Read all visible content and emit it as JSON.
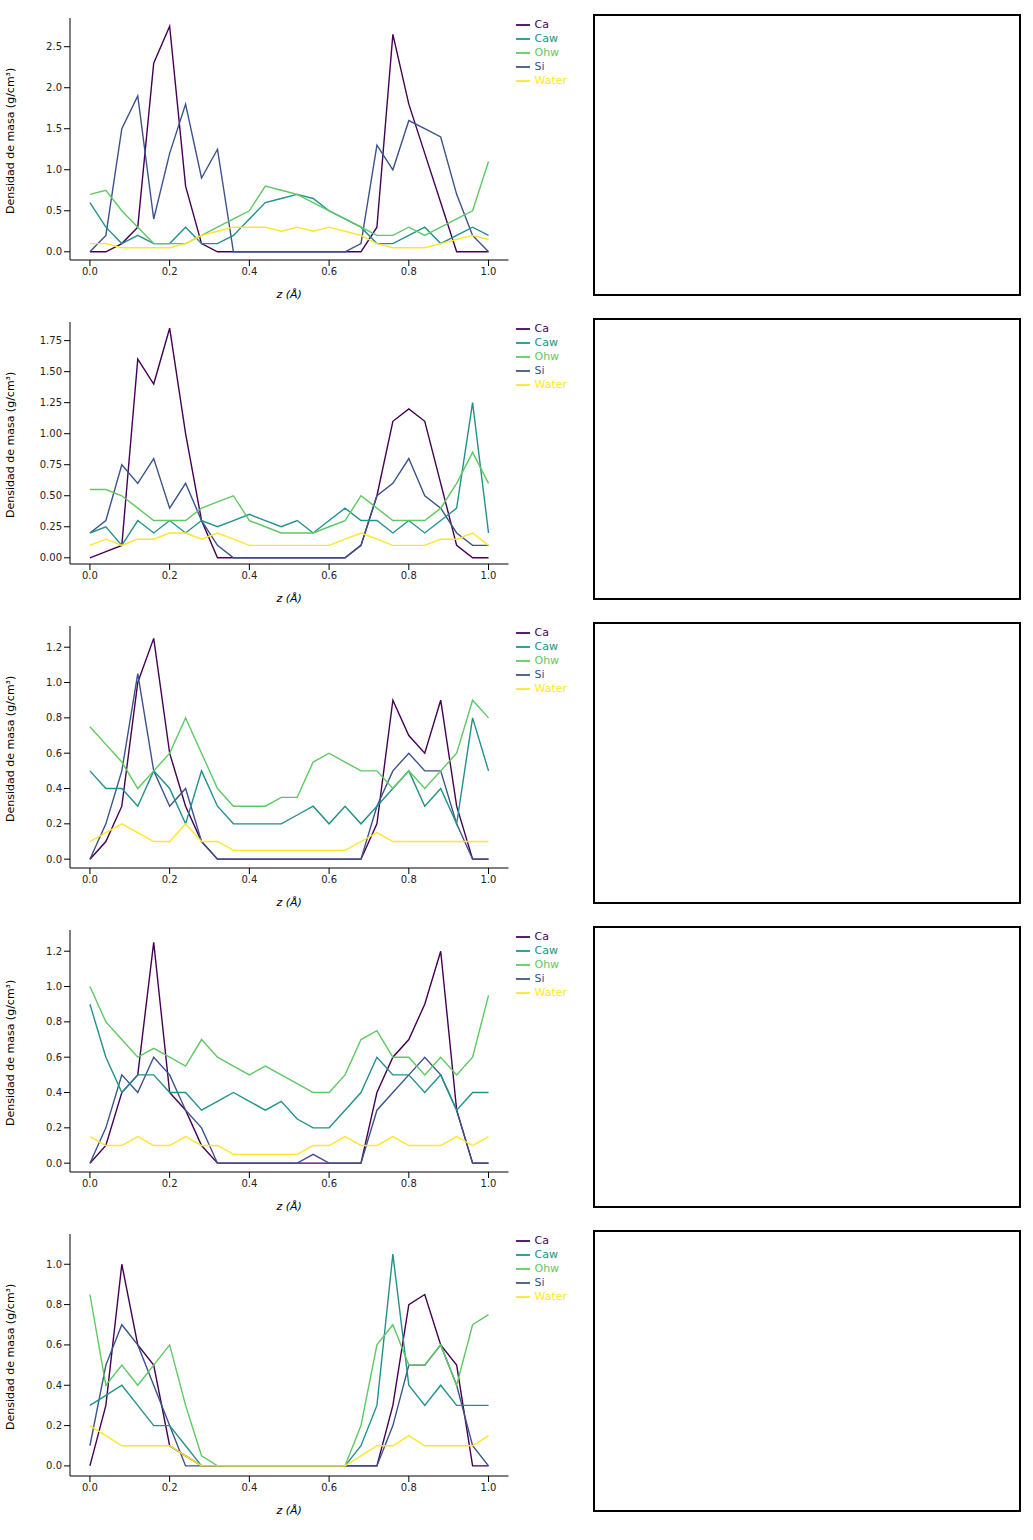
{
  "chart_data": [
    {
      "type": "line",
      "x_label": "z (Å)",
      "y_label": "Densidad de masa (g/cm³)",
      "legend": "right",
      "x": [
        0,
        0.04,
        0.08,
        0.12,
        0.16,
        0.2,
        0.24,
        0.28,
        0.32,
        0.36,
        0.4,
        0.44,
        0.48,
        0.52,
        0.56,
        0.6,
        0.64,
        0.68,
        0.72,
        0.76,
        0.8,
        0.84,
        0.88,
        0.92,
        0.96,
        1.0
      ],
      "xlim": [
        -0.05,
        1.05
      ],
      "xticks": [
        {
          "value": 0,
          "label": "0.0"
        },
        0.2,
        0.4,
        0.6,
        0.8,
        {
          "value": 1,
          "label": "1.0"
        }
      ],
      "ylim": [
        -0.1,
        2.85
      ],
      "yticks": [
        {
          "value": 0,
          "label": "0.0"
        },
        0.5,
        {
          "value": 1,
          "label": "1.0"
        },
        1.5,
        {
          "value": 2,
          "label": "2.0"
        },
        2.5
      ],
      "series": [
        {
          "name": "Ca",
          "color": "#440154",
          "values": [
            0,
            0,
            0.1,
            0.3,
            2.3,
            2.75,
            0.8,
            0.1,
            0,
            0,
            0,
            0,
            0,
            0,
            0,
            0,
            0,
            0,
            0.3,
            2.65,
            1.8,
            1.2,
            0.6,
            0,
            0,
            0
          ]
        },
        {
          "name": "Si",
          "color": "#3b528b",
          "values": [
            0,
            0.2,
            1.5,
            1.9,
            0.4,
            1.2,
            1.8,
            0.9,
            1.25,
            0,
            0,
            0,
            0,
            0,
            0,
            0,
            0,
            0.1,
            1.3,
            1.0,
            1.6,
            1.5,
            1.4,
            0.7,
            0.2,
            0
          ]
        },
        {
          "name": "Caw",
          "color": "#21918c",
          "values": [
            0.6,
            0.3,
            0.1,
            0.2,
            0.1,
            0.1,
            0.3,
            0.1,
            0.1,
            0.2,
            0.4,
            0.6,
            0.65,
            0.7,
            0.65,
            0.5,
            0.4,
            0.3,
            0.1,
            0.1,
            0.2,
            0.3,
            0.1,
            0.2,
            0.3,
            0.2
          ]
        },
        {
          "name": "Ohw",
          "color": "#5ec962",
          "values": [
            0.7,
            0.75,
            0.5,
            0.3,
            0.1,
            0.1,
            0.1,
            0.2,
            0.3,
            0.4,
            0.5,
            0.8,
            0.75,
            0.7,
            0.6,
            0.5,
            0.4,
            0.3,
            0.2,
            0.2,
            0.3,
            0.2,
            0.3,
            0.4,
            0.5,
            1.1
          ]
        },
        {
          "name": "Water",
          "color": "#fde725",
          "values": [
            0.1,
            0.1,
            0.05,
            0.05,
            0.05,
            0.05,
            0.1,
            0.2,
            0.25,
            0.3,
            0.3,
            0.3,
            0.25,
            0.3,
            0.25,
            0.3,
            0.25,
            0.2,
            0.1,
            0.05,
            0.05,
            0.05,
            0.1,
            0.15,
            0.2,
            0.15
          ]
        }
      ]
    },
    {
      "type": "line",
      "x_label": "z (Å)",
      "y_label": "Densidad de masa (g/cm³)",
      "legend": "right",
      "x": [
        0,
        0.04,
        0.08,
        0.12,
        0.16,
        0.2,
        0.24,
        0.28,
        0.32,
        0.36,
        0.4,
        0.44,
        0.48,
        0.52,
        0.56,
        0.6,
        0.64,
        0.68,
        0.72,
        0.76,
        0.8,
        0.84,
        0.88,
        0.92,
        0.96,
        1.0
      ],
      "xlim": [
        -0.05,
        1.05
      ],
      "xticks": [
        {
          "value": 0,
          "label": "0.0"
        },
        0.2,
        0.4,
        0.6,
        0.8,
        {
          "value": 1,
          "label": "1.0"
        }
      ],
      "ylim": [
        -0.05,
        1.9
      ],
      "yticks": [
        {
          "value": 0,
          "label": "0.00"
        },
        0.25,
        {
          "value": 0.5,
          "label": "0.50"
        },
        0.75,
        {
          "value": 1,
          "label": "1.00"
        },
        1.25,
        {
          "value": 1.5,
          "label": "1.50"
        },
        1.75
      ],
      "series": [
        {
          "name": "Ca",
          "color": "#440154",
          "values": [
            0,
            0.05,
            0.1,
            1.6,
            1.4,
            1.85,
            1.0,
            0.3,
            0,
            0,
            0,
            0,
            0,
            0,
            0,
            0,
            0,
            0.1,
            0.5,
            1.1,
            1.2,
            1.1,
            0.6,
            0.1,
            0,
            0
          ]
        },
        {
          "name": "Si",
          "color": "#3b528b",
          "values": [
            0.2,
            0.3,
            0.75,
            0.6,
            0.8,
            0.4,
            0.6,
            0.3,
            0.1,
            0,
            0,
            0,
            0,
            0,
            0,
            0,
            0,
            0.1,
            0.5,
            0.6,
            0.8,
            0.5,
            0.4,
            0.2,
            0.1,
            0.1
          ]
        },
        {
          "name": "Caw",
          "color": "#21918c",
          "values": [
            0.2,
            0.25,
            0.1,
            0.3,
            0.2,
            0.3,
            0.2,
            0.3,
            0.25,
            0.3,
            0.35,
            0.3,
            0.25,
            0.3,
            0.2,
            0.3,
            0.4,
            0.3,
            0.3,
            0.2,
            0.3,
            0.2,
            0.3,
            0.4,
            1.25,
            0.2
          ]
        },
        {
          "name": "Ohw",
          "color": "#5ec962",
          "values": [
            0.55,
            0.55,
            0.5,
            0.4,
            0.3,
            0.3,
            0.3,
            0.4,
            0.45,
            0.5,
            0.3,
            0.25,
            0.2,
            0.2,
            0.2,
            0.25,
            0.3,
            0.5,
            0.4,
            0.3,
            0.3,
            0.3,
            0.4,
            0.6,
            0.85,
            0.6
          ]
        },
        {
          "name": "Water",
          "color": "#fde725",
          "values": [
            0.1,
            0.15,
            0.1,
            0.15,
            0.15,
            0.2,
            0.2,
            0.15,
            0.2,
            0.15,
            0.1,
            0.1,
            0.1,
            0.1,
            0.1,
            0.1,
            0.15,
            0.2,
            0.15,
            0.1,
            0.1,
            0.1,
            0.15,
            0.15,
            0.2,
            0.1
          ]
        }
      ]
    },
    {
      "type": "line",
      "x_label": "z (Å)",
      "y_label": "Densidad de masa (g/cm³)",
      "legend": "right",
      "x": [
        0,
        0.04,
        0.08,
        0.12,
        0.16,
        0.2,
        0.24,
        0.28,
        0.32,
        0.36,
        0.4,
        0.44,
        0.48,
        0.52,
        0.56,
        0.6,
        0.64,
        0.68,
        0.72,
        0.76,
        0.8,
        0.84,
        0.88,
        0.92,
        0.96,
        1.0
      ],
      "xlim": [
        -0.05,
        1.05
      ],
      "xticks": [
        {
          "value": 0,
          "label": "0.0"
        },
        0.2,
        0.4,
        0.6,
        0.8,
        {
          "value": 1,
          "label": "1.0"
        }
      ],
      "ylim": [
        -0.05,
        1.32
      ],
      "yticks": [
        {
          "value": 0,
          "label": "0.0"
        },
        0.2,
        0.4,
        0.6,
        0.8,
        {
          "value": 1,
          "label": "1.0"
        },
        1.2
      ],
      "series": [
        {
          "name": "Ca",
          "color": "#440154",
          "values": [
            0,
            0.1,
            0.3,
            1.0,
            1.25,
            0.6,
            0.3,
            0.1,
            0,
            0,
            0,
            0,
            0,
            0,
            0,
            0,
            0,
            0,
            0.2,
            0.9,
            0.7,
            0.6,
            0.9,
            0.3,
            0,
            0
          ]
        },
        {
          "name": "Si",
          "color": "#3b528b",
          "values": [
            0,
            0.2,
            0.5,
            1.05,
            0.5,
            0.3,
            0.4,
            0.1,
            0,
            0,
            0,
            0,
            0,
            0,
            0,
            0,
            0,
            0,
            0.3,
            0.5,
            0.6,
            0.5,
            0.5,
            0.2,
            0,
            0
          ]
        },
        {
          "name": "Caw",
          "color": "#21918c",
          "values": [
            0.5,
            0.4,
            0.4,
            0.3,
            0.5,
            0.4,
            0.2,
            0.5,
            0.3,
            0.2,
            0.2,
            0.2,
            0.2,
            0.25,
            0.3,
            0.2,
            0.3,
            0.2,
            0.3,
            0.4,
            0.5,
            0.3,
            0.4,
            0.2,
            0.8,
            0.5
          ]
        },
        {
          "name": "Ohw",
          "color": "#5ec962",
          "values": [
            0.75,
            0.65,
            0.55,
            0.4,
            0.5,
            0.6,
            0.8,
            0.6,
            0.4,
            0.3,
            0.3,
            0.3,
            0.35,
            0.35,
            0.55,
            0.6,
            0.55,
            0.5,
            0.5,
            0.4,
            0.5,
            0.4,
            0.5,
            0.6,
            0.9,
            0.8
          ]
        },
        {
          "name": "Water",
          "color": "#fde725",
          "values": [
            0.1,
            0.15,
            0.2,
            0.15,
            0.1,
            0.1,
            0.2,
            0.1,
            0.1,
            0.05,
            0.05,
            0.05,
            0.05,
            0.05,
            0.05,
            0.05,
            0.05,
            0.1,
            0.15,
            0.1,
            0.1,
            0.1,
            0.1,
            0.1,
            0.1,
            0.1
          ]
        }
      ]
    },
    {
      "type": "line",
      "x_label": "z (Å)",
      "y_label": "Densidad de masa (g/cm³)",
      "legend": "right",
      "x": [
        0,
        0.04,
        0.08,
        0.12,
        0.16,
        0.2,
        0.24,
        0.28,
        0.32,
        0.36,
        0.4,
        0.44,
        0.48,
        0.52,
        0.56,
        0.6,
        0.64,
        0.68,
        0.72,
        0.76,
        0.8,
        0.84,
        0.88,
        0.92,
        0.96,
        1.0
      ],
      "xlim": [
        -0.05,
        1.05
      ],
      "xticks": [
        {
          "value": 0,
          "label": "0.0"
        },
        0.2,
        0.4,
        0.6,
        0.8,
        {
          "value": 1,
          "label": "1.0"
        }
      ],
      "ylim": [
        -0.05,
        1.32
      ],
      "yticks": [
        {
          "value": 0,
          "label": "0.0"
        },
        0.2,
        0.4,
        0.6,
        0.8,
        {
          "value": 1,
          "label": "1.0"
        },
        1.2
      ],
      "series": [
        {
          "name": "Ca",
          "color": "#440154",
          "values": [
            0,
            0.1,
            0.4,
            0.5,
            1.25,
            0.4,
            0.3,
            0.1,
            0,
            0,
            0,
            0,
            0,
            0,
            0,
            0,
            0,
            0,
            0.4,
            0.6,
            0.7,
            0.9,
            1.2,
            0.3,
            0,
            0
          ]
        },
        {
          "name": "Si",
          "color": "#3b528b",
          "values": [
            0,
            0.2,
            0.5,
            0.4,
            0.6,
            0.5,
            0.3,
            0.2,
            0,
            0,
            0,
            0,
            0,
            0,
            0.05,
            0,
            0,
            0,
            0.3,
            0.4,
            0.5,
            0.6,
            0.5,
            0.3,
            0,
            0
          ]
        },
        {
          "name": "Caw",
          "color": "#21918c",
          "values": [
            0.9,
            0.6,
            0.4,
            0.5,
            0.5,
            0.4,
            0.4,
            0.3,
            0.35,
            0.4,
            0.35,
            0.3,
            0.35,
            0.25,
            0.2,
            0.2,
            0.3,
            0.4,
            0.6,
            0.5,
            0.5,
            0.4,
            0.5,
            0.3,
            0.4,
            0.4
          ]
        },
        {
          "name": "Ohw",
          "color": "#5ec962",
          "values": [
            1.0,
            0.8,
            0.7,
            0.6,
            0.65,
            0.6,
            0.55,
            0.7,
            0.6,
            0.55,
            0.5,
            0.55,
            0.5,
            0.45,
            0.4,
            0.4,
            0.5,
            0.7,
            0.75,
            0.6,
            0.6,
            0.5,
            0.6,
            0.5,
            0.6,
            0.95
          ]
        },
        {
          "name": "Water",
          "color": "#fde725",
          "values": [
            0.15,
            0.1,
            0.1,
            0.15,
            0.1,
            0.1,
            0.15,
            0.1,
            0.1,
            0.05,
            0.05,
            0.05,
            0.05,
            0.05,
            0.1,
            0.1,
            0.15,
            0.1,
            0.1,
            0.15,
            0.1,
            0.1,
            0.1,
            0.15,
            0.1,
            0.15
          ]
        }
      ]
    },
    {
      "type": "line",
      "x_label": "z (Å)",
      "y_label": "Densidad de masa (g/cm³)",
      "legend": "right",
      "x": [
        0,
        0.04,
        0.08,
        0.12,
        0.16,
        0.2,
        0.24,
        0.28,
        0.32,
        0.36,
        0.4,
        0.44,
        0.48,
        0.52,
        0.56,
        0.6,
        0.64,
        0.68,
        0.72,
        0.76,
        0.8,
        0.84,
        0.88,
        0.92,
        0.96,
        1.0
      ],
      "xlim": [
        -0.05,
        1.05
      ],
      "xticks": [
        {
          "value": 0,
          "label": "0.0"
        },
        0.2,
        0.4,
        0.6,
        0.8,
        {
          "value": 1,
          "label": "1.0"
        }
      ],
      "ylim": [
        -0.05,
        1.15
      ],
      "yticks": [
        {
          "value": 0,
          "label": "0.0"
        },
        0.2,
        0.4,
        0.6,
        0.8,
        {
          "value": 1,
          "label": "1.0"
        }
      ],
      "series": [
        {
          "name": "Ca",
          "color": "#440154",
          "values": [
            0,
            0.3,
            1.0,
            0.6,
            0.5,
            0.1,
            0.05,
            0,
            0,
            0,
            0,
            0,
            0,
            0,
            0,
            0,
            0,
            0,
            0,
            0.3,
            0.8,
            0.85,
            0.6,
            0.5,
            0,
            0
          ]
        },
        {
          "name": "Si",
          "color": "#3b528b",
          "values": [
            0.1,
            0.5,
            0.7,
            0.6,
            0.4,
            0.2,
            0,
            0,
            0,
            0,
            0,
            0,
            0,
            0,
            0,
            0,
            0,
            0,
            0,
            0.2,
            0.5,
            0.5,
            0.6,
            0.4,
            0.1,
            0
          ]
        },
        {
          "name": "Caw",
          "color": "#21918c",
          "values": [
            0.3,
            0.35,
            0.4,
            0.3,
            0.2,
            0.2,
            0.1,
            0,
            0,
            0,
            0,
            0,
            0,
            0,
            0,
            0,
            0,
            0.1,
            0.3,
            1.05,
            0.4,
            0.3,
            0.4,
            0.3,
            0.3,
            0.3
          ]
        },
        {
          "name": "Ohw",
          "color": "#5ec962",
          "values": [
            0.85,
            0.4,
            0.5,
            0.4,
            0.5,
            0.6,
            0.3,
            0.05,
            0,
            0,
            0,
            0,
            0,
            0,
            0,
            0,
            0,
            0.2,
            0.6,
            0.7,
            0.5,
            0.5,
            0.6,
            0.4,
            0.7,
            0.75
          ]
        },
        {
          "name": "Water",
          "color": "#fde725",
          "values": [
            0.2,
            0.15,
            0.1,
            0.1,
            0.1,
            0.1,
            0.05,
            0,
            0,
            0,
            0,
            0,
            0,
            0,
            0,
            0,
            0,
            0.05,
            0.1,
            0.1,
            0.15,
            0.1,
            0.1,
            0.1,
            0.1,
            0.15
          ]
        }
      ]
    }
  ]
}
